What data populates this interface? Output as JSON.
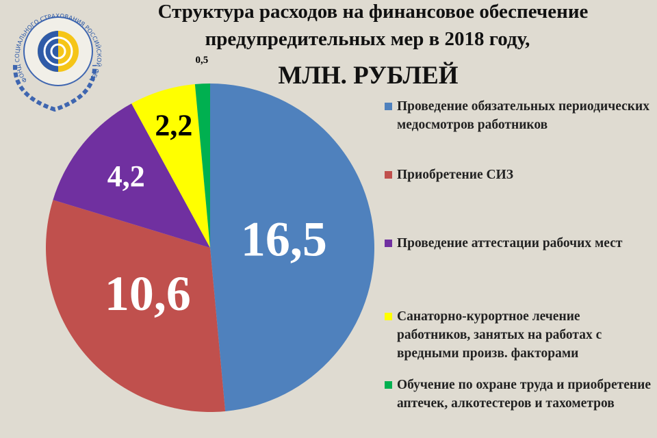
{
  "logo": {
    "text": "ФОНД СОЦИАЛЬНОГО СТРАХОВАНИЯ РОССИЙСКОЙ ФЕДЕРАЦИИ"
  },
  "chart_data": {
    "type": "pie",
    "title": [
      "Структура расходов на финансовое обеспечение",
      "предупредительных   мер в  2018 году,"
    ],
    "subtitle": "МЛН. РУБЛЕЙ",
    "categories": [
      "Проведение обязательных периодических медосмотров работников",
      "Приобретение СИЗ",
      "Проведение аттестации рабочих мест",
      "Санаторно-курортное лечение работников, занятых на работах с вредными произв. факторами",
      "Обучение по охране труда и приобретение аптечек, алкотестеров и тахометров"
    ],
    "values": [
      16.5,
      10.6,
      4.2,
      2.2,
      0.5
    ],
    "value_labels": [
      "16,5",
      "10,6",
      "4,2",
      "2,2",
      "0,5"
    ],
    "colors": [
      "#4f81bd",
      "#c0504d",
      "#7030a0",
      "#ffff00",
      "#00b050"
    ],
    "legend": "right"
  }
}
